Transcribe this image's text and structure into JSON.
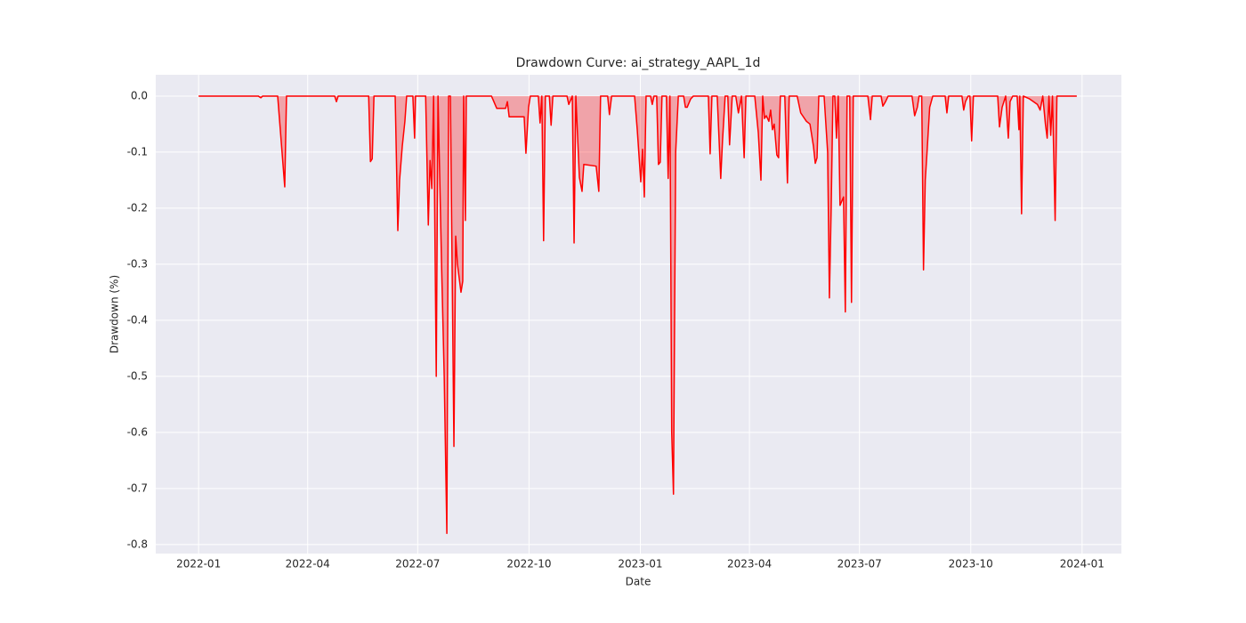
{
  "chart_data": {
    "type": "line",
    "title": "Drawdown Curve: ai_strategy_AAPL_1d",
    "x_label": "Date",
    "y_label": "Drawdown (%)",
    "x": [
      2022.0,
      2022.135,
      2022.141,
      2022.145,
      2022.179,
      2022.195,
      2022.199,
      2022.308,
      2022.312,
      2022.316,
      2022.385,
      2022.389,
      2022.393,
      2022.397,
      2022.445,
      2022.451,
      2022.455,
      2022.461,
      2022.467,
      2022.471,
      2022.485,
      2022.489,
      2022.491,
      2022.514,
      2022.52,
      2022.524,
      2022.528,
      2022.532,
      2022.538,
      2022.542,
      2022.55,
      2022.556,
      2022.562,
      2022.566,
      2022.57,
      2022.578,
      2022.582,
      2022.586,
      2022.594,
      2022.598,
      2022.6,
      2022.604,
      2022.606,
      2022.663,
      2022.675,
      2022.695,
      2022.699,
      2022.703,
      2022.737,
      2022.741,
      2022.747,
      2022.751,
      2022.769,
      2022.773,
      2022.777,
      2022.781,
      2022.785,
      2022.794,
      2022.798,
      2022.802,
      2022.834,
      2022.838,
      2022.846,
      2022.85,
      2022.854,
      2022.862,
      2022.868,
      2022.872,
      2022.9,
      2022.906,
      2022.91,
      2022.926,
      2022.93,
      2022.935,
      2022.987,
      2022.993,
      2023.001,
      2023.005,
      2023.009,
      2023.013,
      2023.023,
      2023.027,
      2023.031,
      2023.037,
      2023.041,
      2023.045,
      2023.049,
      2023.059,
      2023.063,
      2023.067,
      2023.071,
      2023.075,
      2023.08,
      2023.086,
      2023.098,
      2023.102,
      2023.106,
      2023.114,
      2023.12,
      2023.154,
      2023.158,
      2023.162,
      2023.174,
      2023.182,
      2023.186,
      2023.192,
      2023.198,
      2023.202,
      2023.208,
      2023.216,
      2023.222,
      2023.229,
      2023.235,
      2023.239,
      2023.259,
      2023.267,
      2023.273,
      2023.277,
      2023.281,
      2023.285,
      2023.291,
      2023.295,
      2023.299,
      2023.303,
      2023.309,
      2023.313,
      2023.317,
      2023.327,
      2023.333,
      2023.337,
      2023.355,
      2023.359,
      2023.363,
      2023.376,
      2023.384,
      2023.392,
      2023.396,
      2023.4,
      2023.404,
      2023.416,
      2023.424,
      2023.428,
      2023.432,
      2023.436,
      2023.44,
      2023.444,
      2023.448,
      2023.452,
      2023.46,
      2023.464,
      2023.468,
      2023.474,
      2023.478,
      2023.482,
      2023.515,
      2023.521,
      2023.525,
      2023.545,
      2023.549,
      2023.555,
      2023.561,
      2023.615,
      2023.621,
      2023.627,
      2023.631,
      2023.637,
      2023.641,
      2023.645,
      2023.649,
      2023.655,
      2023.662,
      2023.69,
      2023.694,
      2023.698,
      2023.728,
      2023.732,
      2023.736,
      2023.742,
      2023.746,
      2023.75,
      2023.754,
      2023.809,
      2023.813,
      2023.819,
      2023.827,
      2023.833,
      2023.837,
      2023.843,
      2023.853,
      2023.857,
      2023.859,
      2023.863,
      2023.867,
      2023.881,
      2023.899,
      2023.905,
      2023.911,
      2023.917,
      2023.921,
      2023.925,
      2023.929,
      2023.933,
      2023.939,
      2023.943,
      2023.988
    ],
    "values": [
      0,
      0,
      -0.003,
      0,
      0,
      -0.162,
      0,
      0,
      -0.01,
      0,
      0,
      -0.117,
      -0.112,
      0,
      0,
      -0.24,
      -0.15,
      -0.09,
      -0.045,
      0,
      0,
      -0.075,
      0,
      0,
      -0.23,
      -0.115,
      -0.165,
      0,
      -0.5,
      0,
      -0.3,
      -0.5,
      -0.78,
      0,
      0,
      -0.625,
      -0.25,
      -0.3,
      -0.35,
      -0.33,
      0,
      -0.222,
      0,
      0,
      -0.022,
      -0.022,
      -0.01,
      -0.037,
      -0.037,
      -0.102,
      -0.02,
      0,
      0,
      -0.048,
      0,
      -0.258,
      0,
      0,
      -0.052,
      0,
      0,
      -0.015,
      0,
      -0.262,
      0,
      -0.145,
      -0.17,
      -0.122,
      -0.125,
      -0.17,
      0,
      0,
      -0.033,
      0,
      0,
      -0.06,
      -0.153,
      -0.095,
      -0.18,
      0,
      0,
      -0.015,
      0,
      0,
      -0.122,
      -0.118,
      0,
      0,
      -0.147,
      0,
      -0.6,
      -0.71,
      -0.1,
      0,
      0,
      -0.02,
      -0.02,
      -0.005,
      0,
      0,
      -0.103,
      0,
      0,
      -0.147,
      -0.08,
      0,
      0,
      -0.087,
      0,
      0,
      -0.03,
      0,
      -0.11,
      0,
      0,
      -0.065,
      -0.15,
      0,
      -0.04,
      -0.035,
      -0.045,
      -0.025,
      -0.06,
      -0.05,
      -0.105,
      -0.11,
      0,
      0,
      -0.155,
      0,
      0,
      -0.015,
      -0.03,
      -0.045,
      -0.05,
      -0.09,
      -0.12,
      -0.11,
      0,
      0,
      -0.1,
      -0.36,
      -0.2,
      0,
      0,
      -0.075,
      0,
      -0.195,
      -0.18,
      -0.385,
      0,
      0,
      -0.368,
      0,
      0,
      -0.042,
      0,
      0,
      -0.018,
      -0.01,
      0,
      0,
      -0.035,
      -0.02,
      0,
      0,
      -0.31,
      -0.15,
      -0.1,
      -0.02,
      0,
      0,
      -0.03,
      0,
      0,
      -0.025,
      -0.01,
      0,
      0,
      -0.08,
      0,
      0,
      -0.055,
      -0.02,
      0,
      -0.075,
      -0.01,
      0,
      0,
      -0.06,
      0,
      -0.21,
      0,
      -0.005,
      -0.015,
      -0.025,
      0,
      -0.05,
      -0.075,
      0,
      -0.07,
      0,
      -0.222,
      0,
      0
    ],
    "color": "#ff0000",
    "fill_alpha": 0.3,
    "xlim": [
      2021.903,
      2024.089
    ],
    "xticks": [
      {
        "value": 2022.0,
        "label": "2022-01"
      },
      {
        "value": 2022.247,
        "label": "2022-04"
      },
      {
        "value": 2022.496,
        "label": "2022-07"
      },
      {
        "value": 2022.748,
        "label": "2022-10"
      },
      {
        "value": 2023.0,
        "label": "2023-01"
      },
      {
        "value": 2023.247,
        "label": "2023-04"
      },
      {
        "value": 2023.496,
        "label": "2023-07"
      },
      {
        "value": 2023.748,
        "label": "2023-10"
      },
      {
        "value": 2024.0,
        "label": "2024-01"
      }
    ],
    "ylim": [
      -0.816,
      0.038
    ],
    "yticks": [
      -0.8,
      -0.7,
      -0.6,
      -0.5,
      -0.4,
      -0.3,
      -0.2,
      -0.1,
      {
        "value": 0,
        "label": "0.0"
      }
    ],
    "grid": true
  }
}
